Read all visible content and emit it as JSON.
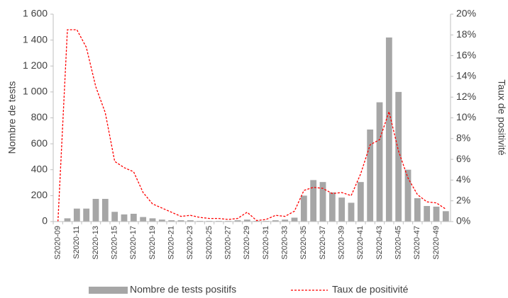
{
  "chart_data": {
    "type": "bar-line",
    "categories": [
      "S2020-09",
      null,
      "S2020-11",
      null,
      "S2020-13",
      null,
      "S2020-15",
      null,
      "S2020-17",
      null,
      "S2020-19",
      null,
      "S2020-21",
      null,
      "S2020-23",
      null,
      "S2020-25",
      null,
      "S2020-27",
      null,
      "S2020-29",
      null,
      "S2020-31",
      null,
      "S2020-33",
      null,
      "S2020-35",
      null,
      "S2020-37",
      null,
      "S2020-39",
      null,
      "S2020-41",
      null,
      "S2020-43",
      null,
      "S2020-45",
      null,
      "S2020-47",
      null,
      "S2020-49",
      null
    ],
    "y_label": "Nombre de tests",
    "y2_label": "Taux de positivité",
    "series": [
      {
        "name": "Nombre de tests positifs",
        "color": "#a6a6a6",
        "type": "bar",
        "values": [
          0,
          25,
          100,
          100,
          175,
          175,
          75,
          55,
          60,
          35,
          25,
          15,
          10,
          10,
          10,
          5,
          5,
          5,
          5,
          10,
          15,
          5,
          5,
          10,
          15,
          30,
          200,
          320,
          305,
          225,
          185,
          145,
          305,
          710,
          920,
          1420,
          1000,
          400,
          180,
          120,
          115,
          80
        ]
      },
      {
        "name": "Taux de positivité",
        "color": "#ff0000",
        "type": "line",
        "axis": "y2",
        "values": [
          0,
          18.5,
          18.5,
          16.8,
          13,
          10.5,
          5.8,
          5.2,
          4.8,
          2.8,
          1.7,
          1.3,
          0.9,
          0.5,
          0.6,
          0.4,
          0.3,
          0.3,
          0.2,
          0.3,
          0.9,
          0.1,
          0.2,
          0.6,
          0.5,
          1.0,
          3.0,
          3.3,
          3.2,
          2.7,
          2.8,
          2.5,
          4.6,
          7.4,
          7.9,
          10.6,
          6.8,
          4.2,
          2.6,
          1.9,
          1.8,
          1.2
        ]
      }
    ],
    "ylim": [
      0,
      1600
    ],
    "yticks": [
      0,
      200,
      400,
      600,
      800,
      {
        "value": 1000,
        "label": "1 000"
      },
      {
        "value": 1200,
        "label": "1 200"
      },
      {
        "value": 1400,
        "label": "1 400"
      },
      {
        "value": 1600,
        "label": "1 600"
      }
    ],
    "y2lim": [
      0,
      20
    ],
    "y2ticks": [
      {
        "value": 0,
        "label": "0%"
      },
      {
        "value": 2,
        "label": "2%"
      },
      {
        "value": 4,
        "label": "4%"
      },
      {
        "value": 6,
        "label": "6%"
      },
      {
        "value": 8,
        "label": "8%"
      },
      {
        "value": 10,
        "label": "10%"
      },
      {
        "value": 12,
        "label": "12%"
      },
      {
        "value": 14,
        "label": "14%"
      },
      {
        "value": 16,
        "label": "16%"
      },
      {
        "value": 18,
        "label": "18%"
      },
      {
        "value": 20,
        "label": "20%"
      }
    ],
    "legend": "bottom"
  }
}
